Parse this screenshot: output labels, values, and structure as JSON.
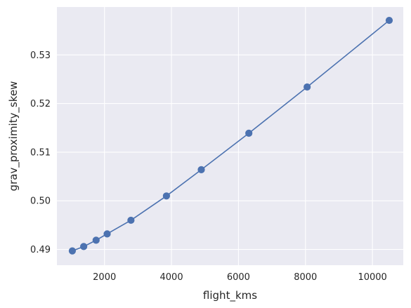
{
  "chart_data": {
    "type": "line",
    "title": "",
    "xlabel": "flight_kms",
    "ylabel": "grav_proximity_skew",
    "xlim": [
      580,
      10920
    ],
    "ylim": [
      0.48676,
      0.53985
    ],
    "x_ticks": [
      2000,
      4000,
      6000,
      8000,
      10000
    ],
    "x_tick_labels": [
      "2000",
      "4000",
      "6000",
      "8000",
      "10000"
    ],
    "y_ticks": [
      0.49,
      0.5,
      0.51,
      0.52,
      0.53
    ],
    "y_tick_labels": [
      "0.49",
      "0.50",
      "0.51",
      "0.52",
      "0.53"
    ],
    "grid": true,
    "style": {
      "background": "#eaeaf2",
      "grid_color": "#ffffff",
      "line_color": "#4c72b0",
      "marker_color": "#4c72b0"
    },
    "series": [
      {
        "x": [
          1040,
          1380,
          1750,
          2080,
          2790,
          3850,
          4890,
          6310,
          8050,
          10500
        ],
        "y": [
          0.4897,
          0.4906,
          0.4919,
          0.4932,
          0.496,
          0.501,
          0.5064,
          0.5139,
          0.5234,
          0.5371
        ]
      }
    ]
  }
}
